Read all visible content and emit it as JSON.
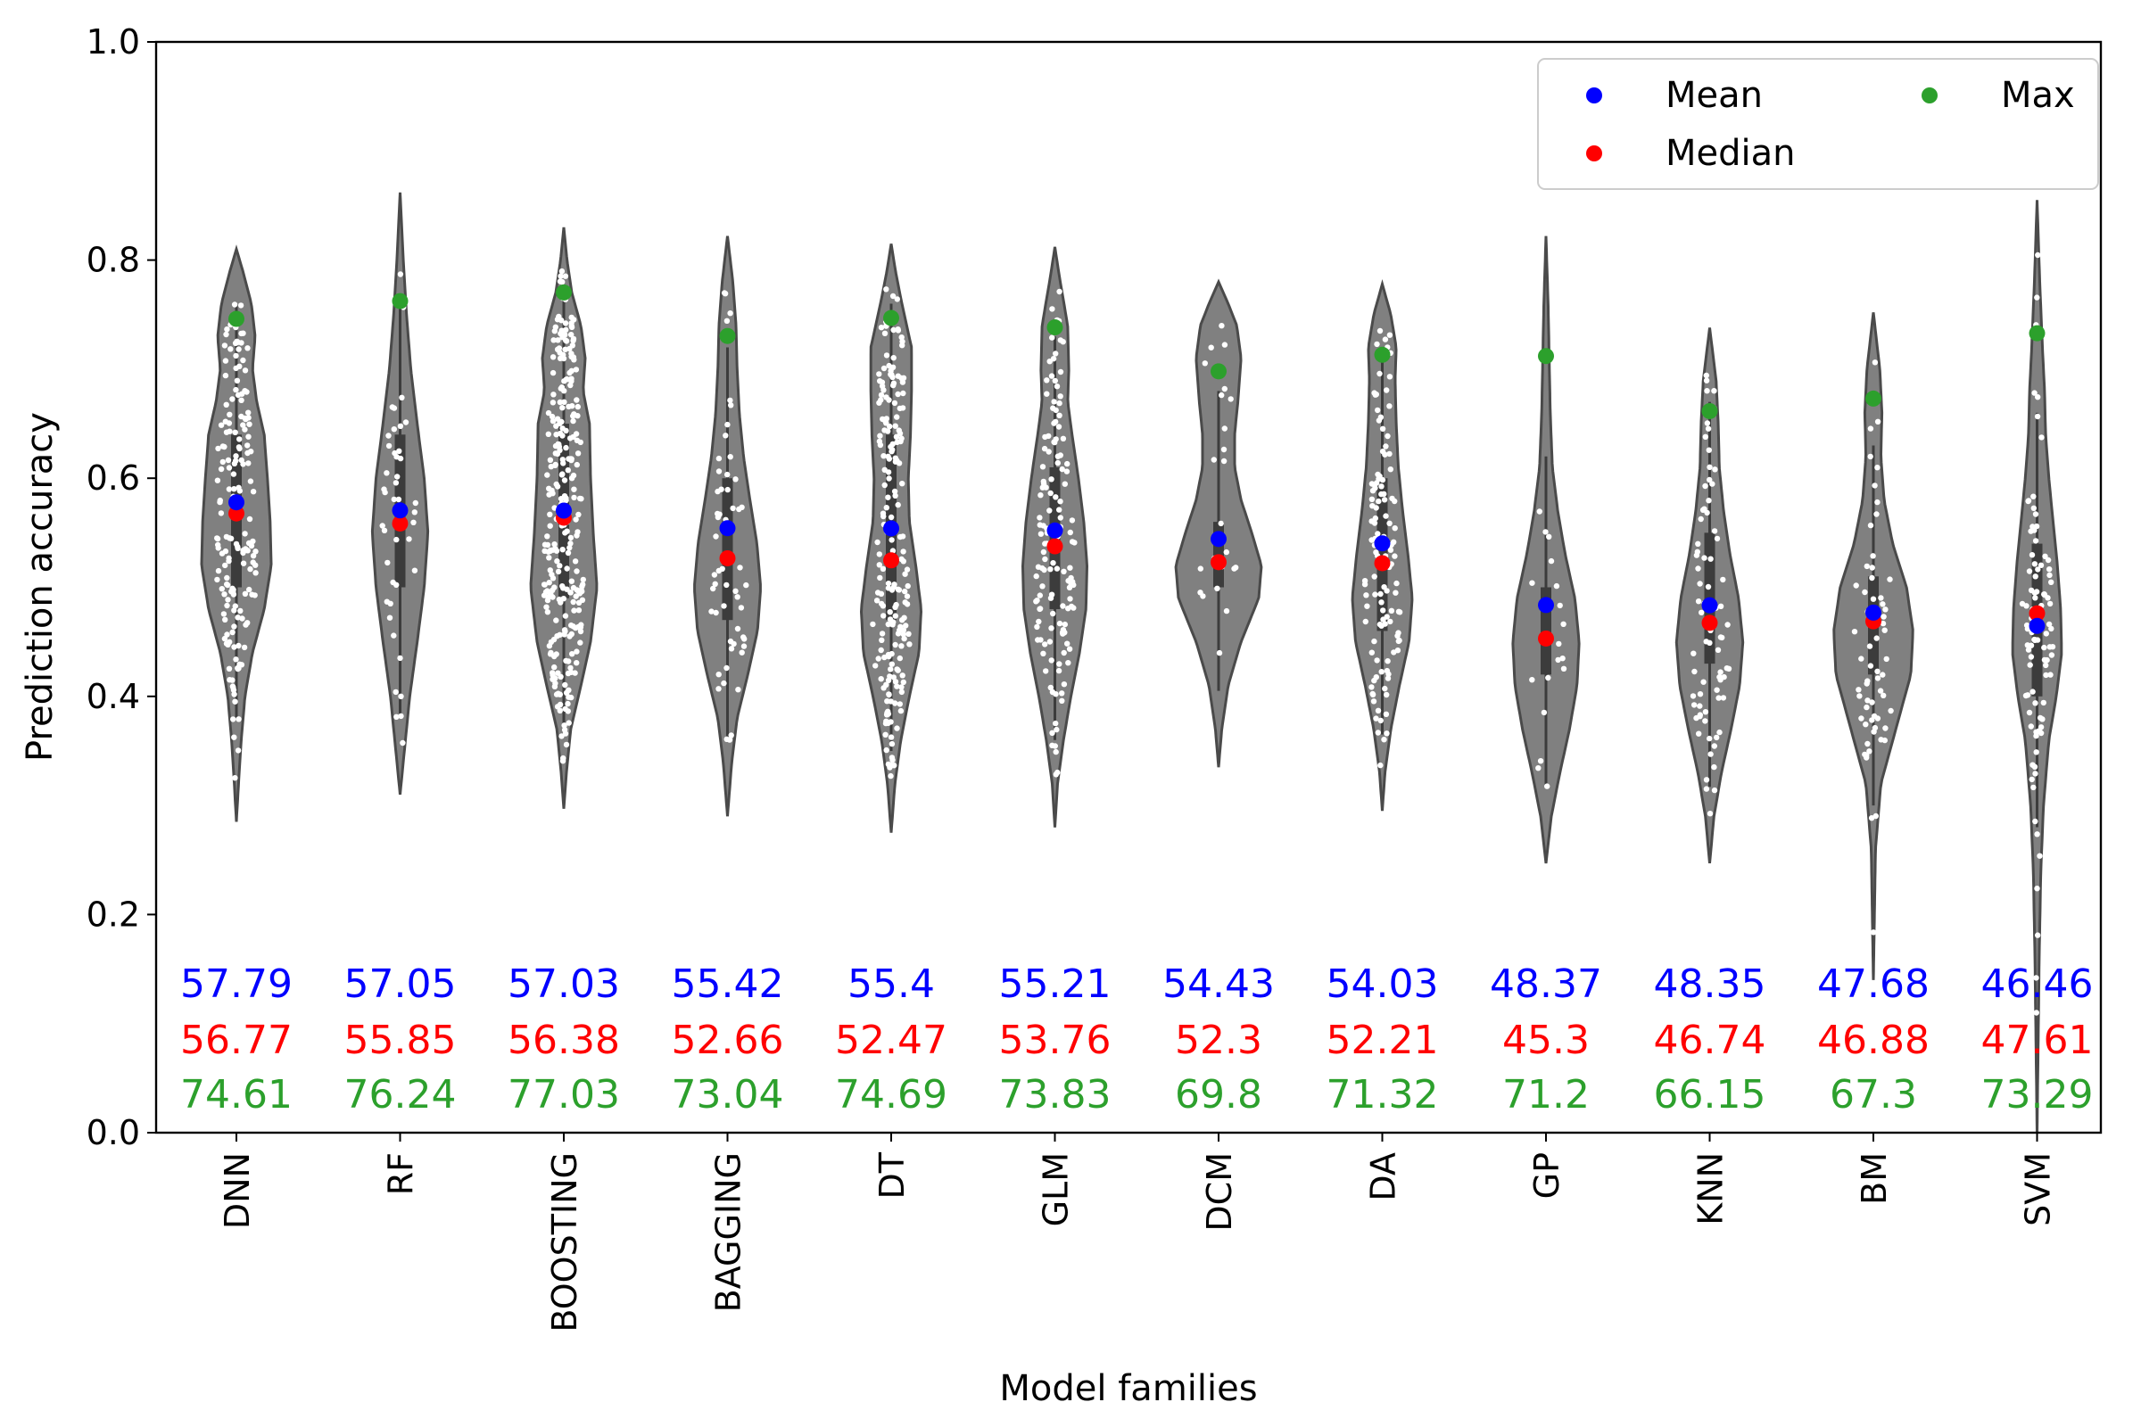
{
  "chart_data": {
    "type": "violin",
    "xlabel": "Model families",
    "ylabel": "Prediction accuracy",
    "ylim": [
      0.0,
      1.0
    ],
    "yticks": [
      "0.0",
      "0.2",
      "0.4",
      "0.6",
      "0.8",
      "1.0"
    ],
    "grid": false,
    "legend": {
      "position": "top-right",
      "entries": [
        {
          "name": "Mean",
          "color": "#0000ff"
        },
        {
          "name": "Median",
          "color": "#ff0000"
        },
        {
          "name": "Max",
          "color": "#2ca02c"
        }
      ]
    },
    "categories": [
      "DNN",
      "RF",
      "BOOSTING",
      "BAGGING",
      "DT",
      "GLM",
      "DCM",
      "DA",
      "GP",
      "KNN",
      "BM",
      "SVM"
    ],
    "series": [
      {
        "name": "Mean",
        "color": "#0000ff",
        "values": [
          57.79,
          57.05,
          57.03,
          55.42,
          55.4,
          55.21,
          54.43,
          54.03,
          48.37,
          48.35,
          47.68,
          46.46
        ]
      },
      {
        "name": "Median",
        "color": "#ff0000",
        "values": [
          56.77,
          55.85,
          56.38,
          52.66,
          52.47,
          53.76,
          52.3,
          52.21,
          45.3,
          46.74,
          46.88,
          47.61
        ]
      },
      {
        "name": "Max",
        "color": "#2ca02c",
        "values": [
          74.61,
          76.24,
          77.03,
          73.04,
          74.69,
          73.83,
          69.8,
          71.32,
          71.2,
          66.15,
          67.3,
          73.29
        ]
      }
    ],
    "stat_labels": {
      "mean": [
        "57.79",
        "57.05",
        "57.03",
        "55.42",
        "55.4",
        "55.21",
        "54.43",
        "54.03",
        "48.37",
        "48.35",
        "47.68",
        "46.46"
      ],
      "median": [
        "56.77",
        "55.85",
        "56.38",
        "52.66",
        "52.47",
        "53.76",
        "52.3",
        "52.21",
        "45.3",
        "46.74",
        "46.88",
        "47.61"
      ],
      "max": [
        "74.61",
        "76.24",
        "77.03",
        "73.04",
        "74.69",
        "73.83",
        "69.8",
        "71.32",
        "71.2",
        "66.15",
        "67.3",
        "73.29"
      ]
    },
    "violins": [
      {
        "name": "DNN",
        "min": 0.285,
        "max": 0.81,
        "q1": 0.5,
        "q3": 0.64,
        "n": 170,
        "profile": [
          [
            0.285,
            0
          ],
          [
            0.32,
            0.04
          ],
          [
            0.36,
            0.09
          ],
          [
            0.4,
            0.16
          ],
          [
            0.44,
            0.3
          ],
          [
            0.48,
            0.52
          ],
          [
            0.52,
            0.65
          ],
          [
            0.56,
            0.63
          ],
          [
            0.6,
            0.58
          ],
          [
            0.64,
            0.52
          ],
          [
            0.67,
            0.38
          ],
          [
            0.7,
            0.3
          ],
          [
            0.73,
            0.35
          ],
          [
            0.76,
            0.28
          ],
          [
            0.79,
            0.12
          ],
          [
            0.81,
            0
          ]
        ]
      },
      {
        "name": "RF",
        "min": 0.31,
        "max": 0.862,
        "q1": 0.5,
        "q3": 0.64,
        "n": 45,
        "profile": [
          [
            0.31,
            0
          ],
          [
            0.35,
            0.08
          ],
          [
            0.4,
            0.18
          ],
          [
            0.45,
            0.32
          ],
          [
            0.5,
            0.45
          ],
          [
            0.55,
            0.52
          ],
          [
            0.6,
            0.45
          ],
          [
            0.65,
            0.32
          ],
          [
            0.7,
            0.2
          ],
          [
            0.75,
            0.12
          ],
          [
            0.8,
            0.06
          ],
          [
            0.862,
            0
          ]
        ]
      },
      {
        "name": "BOOSTING",
        "min": 0.297,
        "max": 0.83,
        "q1": 0.49,
        "q3": 0.65,
        "n": 280,
        "profile": [
          [
            0.297,
            0
          ],
          [
            0.33,
            0.05
          ],
          [
            0.37,
            0.13
          ],
          [
            0.41,
            0.32
          ],
          [
            0.45,
            0.5
          ],
          [
            0.5,
            0.62
          ],
          [
            0.55,
            0.55
          ],
          [
            0.6,
            0.5
          ],
          [
            0.65,
            0.48
          ],
          [
            0.68,
            0.36
          ],
          [
            0.71,
            0.4
          ],
          [
            0.74,
            0.32
          ],
          [
            0.77,
            0.15
          ],
          [
            0.8,
            0.06
          ],
          [
            0.83,
            0
          ]
        ]
      },
      {
        "name": "BAGGING",
        "min": 0.29,
        "max": 0.822,
        "q1": 0.47,
        "q3": 0.6,
        "n": 55,
        "profile": [
          [
            0.29,
            0
          ],
          [
            0.34,
            0.08
          ],
          [
            0.38,
            0.18
          ],
          [
            0.42,
            0.38
          ],
          [
            0.46,
            0.56
          ],
          [
            0.5,
            0.62
          ],
          [
            0.54,
            0.55
          ],
          [
            0.58,
            0.42
          ],
          [
            0.62,
            0.3
          ],
          [
            0.66,
            0.22
          ],
          [
            0.7,
            0.18
          ],
          [
            0.74,
            0.16
          ],
          [
            0.78,
            0.1
          ],
          [
            0.822,
            0
          ]
        ]
      },
      {
        "name": "DT",
        "min": 0.275,
        "max": 0.815,
        "q1": 0.47,
        "q3": 0.64,
        "n": 200,
        "profile": [
          [
            0.275,
            0
          ],
          [
            0.32,
            0.07
          ],
          [
            0.36,
            0.18
          ],
          [
            0.4,
            0.34
          ],
          [
            0.44,
            0.52
          ],
          [
            0.48,
            0.56
          ],
          [
            0.52,
            0.46
          ],
          [
            0.56,
            0.34
          ],
          [
            0.6,
            0.32
          ],
          [
            0.64,
            0.36
          ],
          [
            0.68,
            0.38
          ],
          [
            0.72,
            0.38
          ],
          [
            0.76,
            0.2
          ],
          [
            0.79,
            0.08
          ],
          [
            0.815,
            0
          ]
        ]
      },
      {
        "name": "GLM",
        "min": 0.28,
        "max": 0.812,
        "q1": 0.48,
        "q3": 0.61,
        "n": 140,
        "profile": [
          [
            0.28,
            0
          ],
          [
            0.32,
            0.05
          ],
          [
            0.36,
            0.16
          ],
          [
            0.4,
            0.3
          ],
          [
            0.44,
            0.46
          ],
          [
            0.48,
            0.58
          ],
          [
            0.52,
            0.6
          ],
          [
            0.56,
            0.54
          ],
          [
            0.6,
            0.44
          ],
          [
            0.64,
            0.32
          ],
          [
            0.67,
            0.24
          ],
          [
            0.7,
            0.26
          ],
          [
            0.74,
            0.24
          ],
          [
            0.78,
            0.1
          ],
          [
            0.812,
            0
          ]
        ]
      },
      {
        "name": "DCM",
        "min": 0.335,
        "max": 0.78,
        "q1": 0.5,
        "q3": 0.56,
        "n": 25,
        "profile": [
          [
            0.335,
            0
          ],
          [
            0.37,
            0.06
          ],
          [
            0.41,
            0.18
          ],
          [
            0.45,
            0.42
          ],
          [
            0.49,
            0.75
          ],
          [
            0.52,
            0.8
          ],
          [
            0.55,
            0.62
          ],
          [
            0.58,
            0.42
          ],
          [
            0.61,
            0.3
          ],
          [
            0.64,
            0.3
          ],
          [
            0.67,
            0.36
          ],
          [
            0.71,
            0.42
          ],
          [
            0.74,
            0.34
          ],
          [
            0.76,
            0.18
          ],
          [
            0.78,
            0
          ]
        ]
      },
      {
        "name": "DA",
        "min": 0.295,
        "max": 0.778,
        "q1": 0.46,
        "q3": 0.6,
        "n": 120,
        "profile": [
          [
            0.295,
            0
          ],
          [
            0.33,
            0.05
          ],
          [
            0.37,
            0.16
          ],
          [
            0.41,
            0.32
          ],
          [
            0.45,
            0.5
          ],
          [
            0.49,
            0.56
          ],
          [
            0.53,
            0.48
          ],
          [
            0.57,
            0.38
          ],
          [
            0.61,
            0.3
          ],
          [
            0.65,
            0.26
          ],
          [
            0.69,
            0.24
          ],
          [
            0.72,
            0.26
          ],
          [
            0.75,
            0.16
          ],
          [
            0.778,
            0
          ]
        ]
      },
      {
        "name": "GP",
        "min": 0.247,
        "max": 0.822,
        "q1": 0.42,
        "q3": 0.5,
        "n": 20,
        "profile": [
          [
            0.247,
            0
          ],
          [
            0.29,
            0.1
          ],
          [
            0.33,
            0.26
          ],
          [
            0.37,
            0.44
          ],
          [
            0.41,
            0.58
          ],
          [
            0.45,
            0.62
          ],
          [
            0.49,
            0.54
          ],
          [
            0.53,
            0.36
          ],
          [
            0.57,
            0.22
          ],
          [
            0.61,
            0.12
          ],
          [
            0.66,
            0.08
          ],
          [
            0.71,
            0.06
          ],
          [
            0.76,
            0.04
          ],
          [
            0.822,
            0
          ]
        ]
      },
      {
        "name": "KNN",
        "min": 0.247,
        "max": 0.738,
        "q1": 0.43,
        "q3": 0.55,
        "n": 75,
        "profile": [
          [
            0.247,
            0
          ],
          [
            0.29,
            0.08
          ],
          [
            0.33,
            0.22
          ],
          [
            0.37,
            0.4
          ],
          [
            0.41,
            0.56
          ],
          [
            0.45,
            0.62
          ],
          [
            0.49,
            0.54
          ],
          [
            0.53,
            0.38
          ],
          [
            0.57,
            0.26
          ],
          [
            0.61,
            0.18
          ],
          [
            0.65,
            0.16
          ],
          [
            0.69,
            0.12
          ],
          [
            0.738,
            0
          ]
        ]
      },
      {
        "name": "BM",
        "min": 0.14,
        "max": 0.752,
        "q1": 0.42,
        "q3": 0.51,
        "n": 65,
        "profile": [
          [
            0.14,
            0
          ],
          [
            0.2,
            0.02
          ],
          [
            0.26,
            0.04
          ],
          [
            0.32,
            0.14
          ],
          [
            0.37,
            0.42
          ],
          [
            0.42,
            0.7
          ],
          [
            0.46,
            0.74
          ],
          [
            0.5,
            0.62
          ],
          [
            0.54,
            0.36
          ],
          [
            0.58,
            0.2
          ],
          [
            0.62,
            0.14
          ],
          [
            0.66,
            0.16
          ],
          [
            0.7,
            0.12
          ],
          [
            0.752,
            0
          ]
        ]
      },
      {
        "name": "SVM",
        "min": 0.0,
        "max": 0.855,
        "q1": 0.4,
        "q3": 0.54,
        "n": 95,
        "profile": [
          [
            0.0,
            0
          ],
          [
            0.08,
            0.02
          ],
          [
            0.16,
            0.04
          ],
          [
            0.24,
            0.07
          ],
          [
            0.3,
            0.12
          ],
          [
            0.36,
            0.22
          ],
          [
            0.4,
            0.36
          ],
          [
            0.44,
            0.46
          ],
          [
            0.48,
            0.44
          ],
          [
            0.52,
            0.38
          ],
          [
            0.56,
            0.3
          ],
          [
            0.6,
            0.22
          ],
          [
            0.64,
            0.16
          ],
          [
            0.68,
            0.14
          ],
          [
            0.72,
            0.1
          ],
          [
            0.78,
            0.05
          ],
          [
            0.855,
            0
          ]
        ]
      }
    ]
  }
}
